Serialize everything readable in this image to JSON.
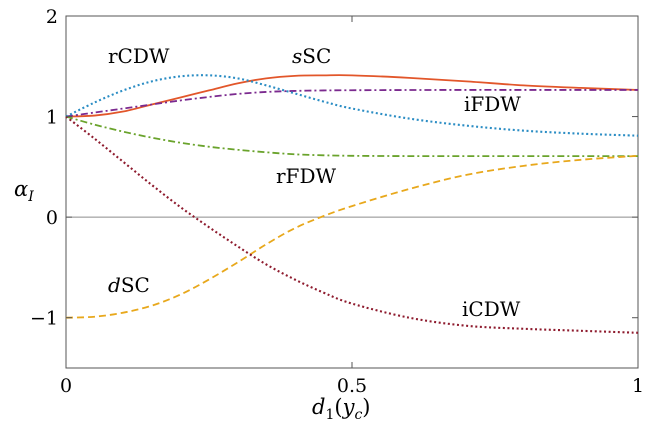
{
  "chart_data": {
    "type": "line",
    "xlabel": "d1(yc)",
    "xlabel_parts": {
      "main": "d",
      "sub1": "1",
      "paren_open": "(",
      "var": "y",
      "sub2": "c",
      "paren_close": ")"
    },
    "ylabel": "αI",
    "ylabel_parts": {
      "main": "α",
      "sub": "I"
    },
    "xlim": [
      0,
      1
    ],
    "ylim": [
      -1.5,
      2
    ],
    "xticks": [
      {
        "value": 0,
        "label": "0"
      },
      {
        "value": 0.5,
        "label": "0.5"
      },
      {
        "value": 1,
        "label": "1"
      }
    ],
    "yticks": [
      {
        "value": -1,
        "label": "−1"
      },
      {
        "value": 0,
        "label": "0"
      },
      {
        "value": 1,
        "label": "1"
      },
      {
        "value": 2,
        "label": "2"
      }
    ],
    "zero_line": true,
    "grid": false,
    "series": [
      {
        "name": "sSC",
        "label_parts": {
          "italic": "s",
          "rest": "SC"
        },
        "color": "#e2562a",
        "dash": "solid",
        "x": [
          0,
          0.05,
          0.1,
          0.15,
          0.2,
          0.25,
          0.3,
          0.35,
          0.4,
          0.45,
          0.5,
          0.6,
          0.7,
          0.8,
          0.9,
          1.0
        ],
        "y": [
          1.0,
          1.01,
          1.05,
          1.12,
          1.19,
          1.26,
          1.33,
          1.38,
          1.405,
          1.41,
          1.41,
          1.385,
          1.35,
          1.31,
          1.285,
          1.265
        ]
      },
      {
        "name": "iFDW",
        "label_parts": {
          "italic": "",
          "rest": "iFDW"
        },
        "color": "#7b2a8f",
        "dash": "dashdot",
        "x": [
          0,
          0.05,
          0.1,
          0.15,
          0.2,
          0.25,
          0.3,
          0.35,
          0.4,
          0.45,
          0.5,
          0.6,
          0.7,
          0.8,
          0.9,
          1.0
        ],
        "y": [
          1.0,
          1.04,
          1.08,
          1.12,
          1.16,
          1.195,
          1.225,
          1.245,
          1.255,
          1.26,
          1.262,
          1.264,
          1.265,
          1.265,
          1.265,
          1.265
        ]
      },
      {
        "name": "rCDW",
        "label_parts": {
          "italic": "",
          "rest": "rCDW"
        },
        "color": "#2b8dc4",
        "dash": "dotted",
        "x": [
          0,
          0.05,
          0.1,
          0.15,
          0.2,
          0.25,
          0.3,
          0.35,
          0.4,
          0.45,
          0.5,
          0.6,
          0.7,
          0.8,
          0.9,
          1.0
        ],
        "y": [
          1.0,
          1.14,
          1.26,
          1.35,
          1.4,
          1.41,
          1.38,
          1.31,
          1.23,
          1.15,
          1.08,
          0.98,
          0.91,
          0.86,
          0.83,
          0.81
        ]
      },
      {
        "name": "rFDW",
        "label_parts": {
          "italic": "",
          "rest": "rFDW"
        },
        "color": "#6aa32c",
        "dash": "dashdot",
        "x": [
          0,
          0.05,
          0.1,
          0.15,
          0.2,
          0.25,
          0.3,
          0.35,
          0.4,
          0.45,
          0.5,
          0.6,
          0.7,
          0.8,
          0.9,
          1.0
        ],
        "y": [
          1.0,
          0.92,
          0.85,
          0.79,
          0.74,
          0.7,
          0.67,
          0.645,
          0.625,
          0.615,
          0.61,
          0.607,
          0.607,
          0.607,
          0.607,
          0.607
        ]
      },
      {
        "name": "dSC",
        "label_parts": {
          "italic": "d",
          "rest": "SC"
        },
        "color": "#e8a81c",
        "dash": "dashed",
        "x": [
          0,
          0.05,
          0.1,
          0.15,
          0.2,
          0.25,
          0.3,
          0.35,
          0.4,
          0.45,
          0.5,
          0.6,
          0.7,
          0.8,
          0.9,
          1.0
        ],
        "y": [
          -1.0,
          -0.99,
          -0.95,
          -0.88,
          -0.77,
          -0.62,
          -0.45,
          -0.27,
          -0.11,
          0.01,
          0.11,
          0.28,
          0.42,
          0.51,
          0.57,
          0.61
        ]
      },
      {
        "name": "iCDW",
        "label_parts": {
          "italic": "",
          "rest": "iCDW"
        },
        "color": "#8e1b2e",
        "dash": "dotted",
        "x": [
          0,
          0.05,
          0.1,
          0.15,
          0.2,
          0.25,
          0.3,
          0.35,
          0.4,
          0.45,
          0.5,
          0.6,
          0.7,
          0.8,
          0.9,
          1.0
        ],
        "y": [
          1.0,
          0.78,
          0.55,
          0.32,
          0.1,
          -0.1,
          -0.29,
          -0.47,
          -0.62,
          -0.75,
          -0.86,
          -1.0,
          -1.08,
          -1.11,
          -1.13,
          -1.15
        ]
      }
    ]
  }
}
